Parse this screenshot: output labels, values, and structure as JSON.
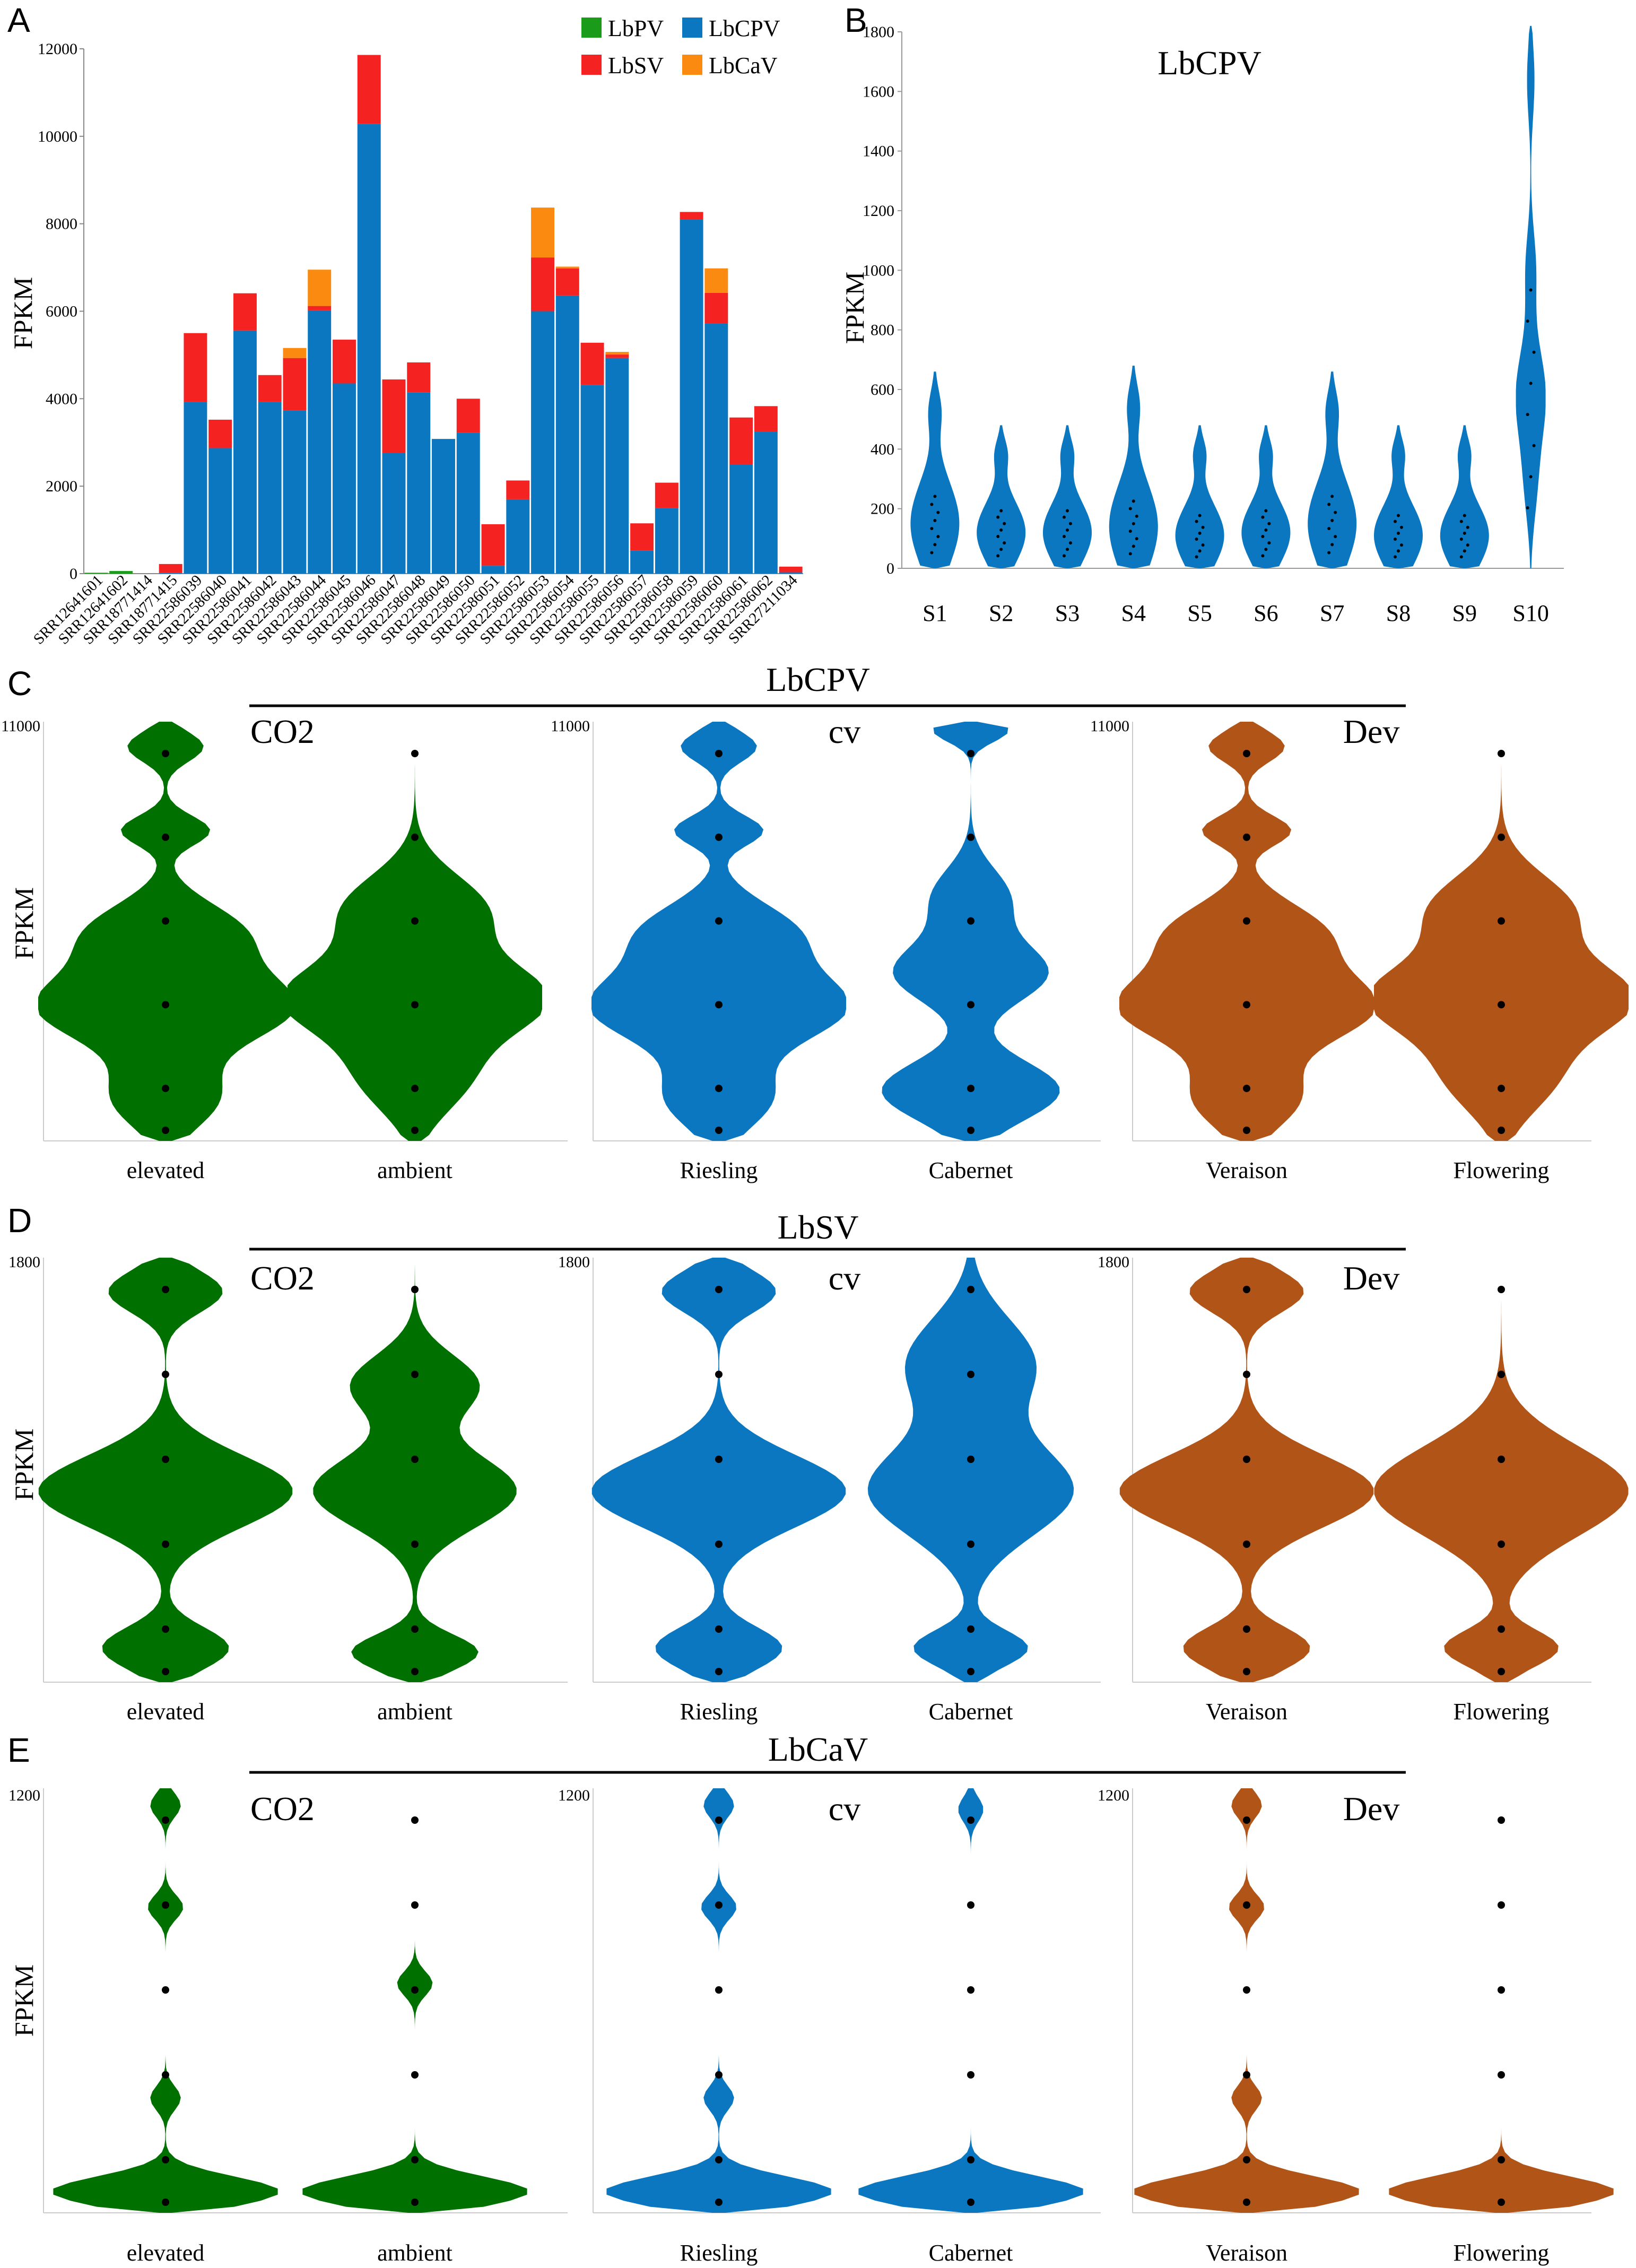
{
  "colors": {
    "LbPV": "#1a9c1a",
    "LbCPV": "#0a77c0",
    "LbSV": "#f52222",
    "LbCaV": "#fa8a10",
    "green": "#007000",
    "blue": "#0a77c0",
    "brown": "#b05418"
  },
  "chart_data": [
    {
      "panel": "A",
      "type": "bar",
      "stacked": true,
      "ylabel": "FPKM",
      "ylim": [
        0,
        12000
      ],
      "yticks": [
        0,
        2000,
        4000,
        6000,
        8000,
        10000,
        12000
      ],
      "legend": [
        "LbPV",
        "LbCPV",
        "LbSV",
        "LbCaV"
      ],
      "categories": [
        "SRR12641601",
        "SRR12641602",
        "SRR18771414",
        "SRR18771415",
        "SRR22586039",
        "SRR22586040",
        "SRR22586041",
        "SRR22586042",
        "SRR22586043",
        "SRR22586044",
        "SRR22586045",
        "SRR22586046",
        "SRR22586047",
        "SRR22586048",
        "SRR22586049",
        "SRR22586050",
        "SRR22586051",
        "SRR22586052",
        "SRR22586053",
        "SRR22586054",
        "SRR22586055",
        "SRR22586056",
        "SRR22586057",
        "SRR22586058",
        "SRR22586059",
        "SRR22586060",
        "SRR22586061",
        "SRR22586062",
        "SRR27211034"
      ],
      "series": [
        {
          "name": "LbPV",
          "values": [
            20,
            60,
            0,
            0,
            0,
            0,
            0,
            0,
            0,
            0,
            0,
            0,
            0,
            0,
            0,
            0,
            0,
            0,
            0,
            0,
            0,
            0,
            0,
            0,
            0,
            0,
            0,
            0,
            0
          ]
        },
        {
          "name": "LbCPV",
          "values": [
            0,
            0,
            0,
            20,
            3930,
            2870,
            5560,
            3920,
            3730,
            6020,
            4350,
            10280,
            2760,
            4140,
            3080,
            3220,
            180,
            1700,
            6000,
            6360,
            4310,
            4930,
            530,
            1500,
            8100,
            5720,
            2500,
            3240,
            30
          ]
        },
        {
          "name": "LbSV",
          "values": [
            0,
            0,
            0,
            200,
            1570,
            650,
            850,
            620,
            1200,
            100,
            1000,
            1580,
            1680,
            690,
            0,
            780,
            950,
            430,
            1230,
            620,
            970,
            80,
            620,
            580,
            170,
            700,
            1070,
            590,
            130
          ]
        },
        {
          "name": "LbCaV",
          "values": [
            0,
            0,
            0,
            0,
            0,
            0,
            0,
            0,
            230,
            830,
            0,
            0,
            0,
            0,
            0,
            0,
            0,
            0,
            1140,
            40,
            0,
            60,
            0,
            0,
            0,
            560,
            0,
            0,
            0
          ]
        }
      ]
    },
    {
      "panel": "B",
      "type": "violin",
      "title": "LbCPV",
      "ylabel": "FPKM",
      "ylim": [
        0,
        1800
      ],
      "yticks": [
        0,
        200,
        400,
        600,
        800,
        1000,
        1200,
        1400,
        1600,
        1800
      ],
      "categories": [
        "S1",
        "S2",
        "S3",
        "S4",
        "S5",
        "S6",
        "S7",
        "S8",
        "S9",
        "S10"
      ],
      "violin_range": [
        [
          0,
          660
        ],
        [
          0,
          480
        ],
        [
          0,
          480
        ],
        [
          0,
          680
        ],
        [
          0,
          480
        ],
        [
          0,
          480
        ],
        [
          0,
          660
        ],
        [
          0,
          480
        ],
        [
          0,
          480
        ],
        [
          0,
          1820
        ]
      ],
      "median": [
        150,
        120,
        120,
        140,
        110,
        120,
        150,
        110,
        110,
        580
      ]
    },
    {
      "panel": "C",
      "type": "violin",
      "title": "LbCPV",
      "ylabel": "FPKM",
      "ymax": 11000,
      "groups": [
        {
          "title": "CO2",
          "categories": [
            "elevated",
            "ambient"
          ],
          "color": "green"
        },
        {
          "title": "cv",
          "categories": [
            "Riesling",
            "Cabernet"
          ],
          "color": "blue"
        },
        {
          "title": "Dev",
          "categories": [
            "Veraison",
            "Flowering"
          ],
          "color": "brown"
        }
      ]
    },
    {
      "panel": "D",
      "type": "violin",
      "title": "LbSV",
      "ylabel": "FPKM",
      "ymax": 1800,
      "groups": [
        {
          "title": "CO2",
          "categories": [
            "elevated",
            "ambient"
          ],
          "color": "green"
        },
        {
          "title": "cv",
          "categories": [
            "Riesling",
            "Cabernet"
          ],
          "color": "blue"
        },
        {
          "title": "Dev",
          "categories": [
            "Veraison",
            "Flowering"
          ],
          "color": "brown"
        }
      ]
    },
    {
      "panel": "E",
      "type": "violin",
      "title": "LbCaV",
      "ylabel": "FPKM",
      "ymax": 1200,
      "groups": [
        {
          "title": "CO2",
          "categories": [
            "elevated",
            "ambient"
          ],
          "color": "green"
        },
        {
          "title": "cv",
          "categories": [
            "Riesling",
            "Cabernet"
          ],
          "color": "blue"
        },
        {
          "title": "Dev",
          "categories": [
            "Veraison",
            "Flowering"
          ],
          "color": "brown"
        }
      ]
    }
  ]
}
